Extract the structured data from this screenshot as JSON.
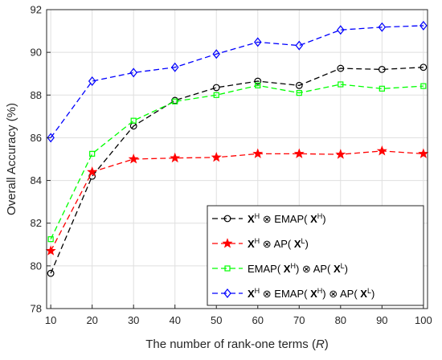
{
  "chart_data": {
    "type": "line",
    "title": "",
    "xlabel": "The number of rank-one terms (R)",
    "xlabel_parts": [
      "The number of rank-one terms (",
      "R",
      ")"
    ],
    "ylabel": "Overall Accuracy (%)",
    "x": [
      10,
      20,
      30,
      40,
      50,
      60,
      70,
      80,
      90,
      100
    ],
    "xlim": [
      9,
      101
    ],
    "ylim": [
      78,
      92
    ],
    "xticks": [
      10,
      20,
      30,
      40,
      50,
      60,
      70,
      80,
      90,
      100
    ],
    "yticks": [
      78,
      80,
      82,
      84,
      86,
      88,
      90,
      92
    ],
    "grid": true,
    "legend_position": "bottom-right",
    "series": [
      {
        "name": "X^H ⊗ EMAP( X^H)",
        "legend_parts": [
          [
            "X",
            "bold"
          ],
          [
            "H",
            "sup"
          ],
          [
            " ⊗ EMAP( ",
            "normal"
          ],
          [
            "X",
            "bold"
          ],
          [
            "H",
            "sup"
          ],
          [
            ")",
            "normal"
          ]
        ],
        "color": "#000000",
        "marker": "circle",
        "values": [
          79.65,
          84.2,
          86.55,
          87.75,
          88.35,
          88.65,
          88.45,
          89.25,
          89.2,
          89.3
        ]
      },
      {
        "name": "X^H ⊗ AP( X^L)",
        "legend_parts": [
          [
            "X",
            "bold"
          ],
          [
            "H",
            "sup"
          ],
          [
            " ⊗ AP( ",
            "normal"
          ],
          [
            "X",
            "bold"
          ],
          [
            "L",
            "sup"
          ],
          [
            ")",
            "normal"
          ]
        ],
        "color": "#ff0000",
        "marker": "star",
        "values": [
          80.7,
          84.4,
          85.0,
          85.05,
          85.08,
          85.25,
          85.25,
          85.22,
          85.38,
          85.25
        ]
      },
      {
        "name": "EMAP( X^H) ⊗ AP( X^L)",
        "legend_parts": [
          [
            "EMAP( ",
            "normal"
          ],
          [
            "X",
            "bold"
          ],
          [
            "H",
            "sup"
          ],
          [
            ") ⊗ AP( ",
            "normal"
          ],
          [
            "X",
            "bold"
          ],
          [
            "L",
            "sup"
          ],
          [
            ")",
            "normal"
          ]
        ],
        "color": "#00ff00",
        "marker": "square",
        "values": [
          81.25,
          85.25,
          86.8,
          87.7,
          88.0,
          88.45,
          88.1,
          88.5,
          88.3,
          88.42
        ]
      },
      {
        "name": "X^H ⊗ EMAP( X^H) ⊗ AP( X^L)",
        "legend_parts": [
          [
            "X",
            "bold"
          ],
          [
            "H",
            "sup"
          ],
          [
            " ⊗ EMAP( ",
            "normal"
          ],
          [
            "X",
            "bold"
          ],
          [
            "H",
            "sup"
          ],
          [
            ") ⊗ AP( ",
            "normal"
          ],
          [
            "X",
            "bold"
          ],
          [
            "L",
            "sup"
          ],
          [
            ")",
            "normal"
          ]
        ],
        "color": "#0000ff",
        "marker": "diamond",
        "values": [
          86.0,
          88.65,
          89.05,
          89.3,
          89.92,
          90.48,
          90.32,
          91.05,
          91.18,
          91.25
        ]
      }
    ]
  }
}
